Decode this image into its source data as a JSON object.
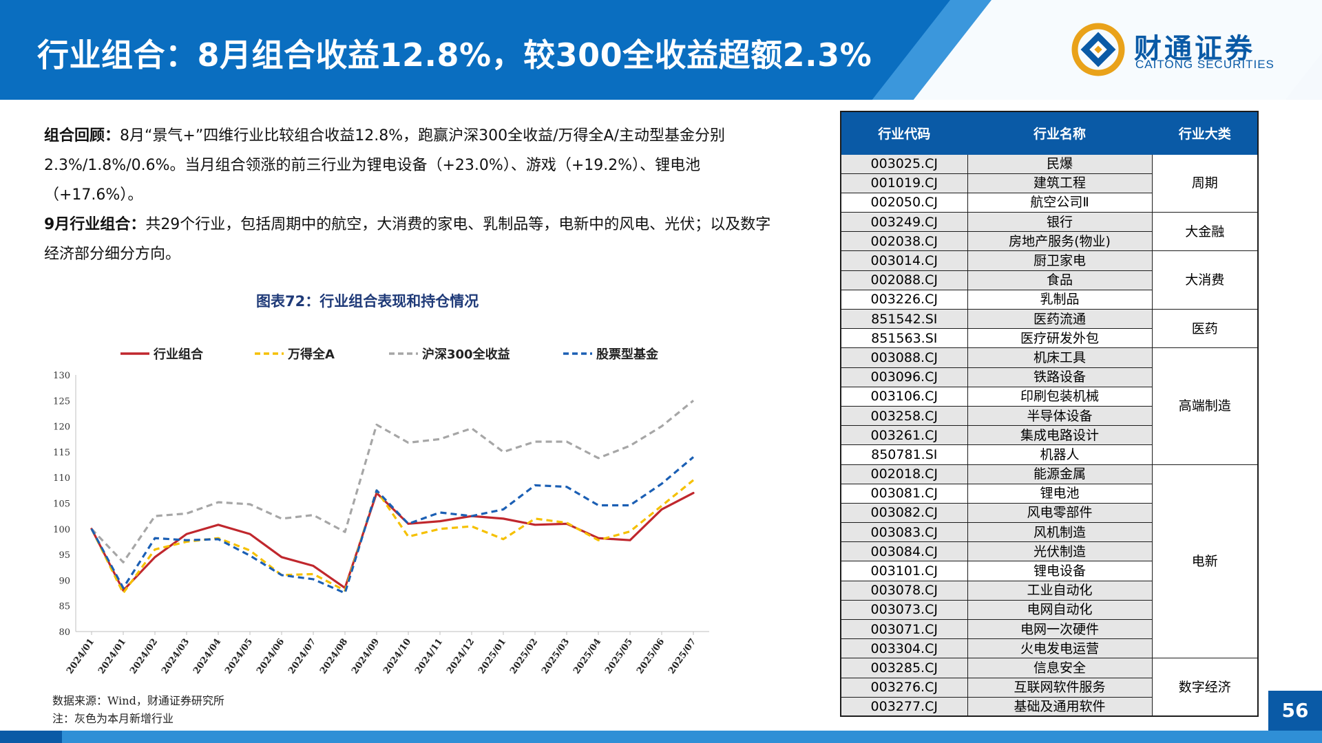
{
  "header": {
    "title": "行业组合：8月组合收益12.8%，较300全收益超额2.3%",
    "logo_cn": "财通证券",
    "logo_en": "CAITONG SECURITIES"
  },
  "intro": {
    "p1_lead": "组合回顾：",
    "p1_text": "8月“景气+”四维行业比较组合收益12.8%，跑赢沪深300全收益/万得全A/主动型基金分别2.3%/1.8%/0.6%。当月组合领涨的前三行业为锂电设备（+23.0%）、游戏（+19.2%）、锂电池（+17.6%）。",
    "p2_lead": "9月行业组合：",
    "p2_text": "共29个行业，包括周期中的航空，大消费的家电、乳制品等，电新中的风电、光伏；以及数字经济部分细分方向。"
  },
  "chart_title": "图表72：行业组合表现和持仓情况",
  "chart_data": {
    "type": "line",
    "categories": [
      "2024/01",
      "2024/01",
      "2024/02",
      "2024/03",
      "2024/04",
      "2024/05",
      "2024/06",
      "2024/07",
      "2024/08",
      "2024/09",
      "2024/10",
      "2024/11",
      "2024/12",
      "2025/01",
      "2025/02",
      "2025/03",
      "2025/04",
      "2025/05",
      "2025/06",
      "2025/07"
    ],
    "ylim": [
      80,
      130
    ],
    "yticks": [
      80,
      85,
      90,
      95,
      100,
      105,
      110,
      115,
      120,
      125,
      130
    ],
    "series": [
      {
        "name": "行业组合",
        "color": "#c0272d",
        "dash": "solid",
        "values": [
          100,
          88,
          94.5,
          99,
          100.8,
          99,
          94.5,
          92.8,
          88.5,
          107,
          101,
          101.5,
          102.5,
          102,
          100.8,
          101,
          98.2,
          97.8,
          103.8,
          107
        ]
      },
      {
        "name": "万得全A",
        "color": "#f5c000",
        "dash": "dash",
        "values": [
          100,
          87.5,
          96,
          97.5,
          98.2,
          95.8,
          91,
          91.2,
          88,
          107.5,
          98.5,
          100,
          100.5,
          98,
          102,
          101.2,
          97.8,
          99.5,
          104.5,
          109.5
        ]
      },
      {
        "name": "沪深300全收益",
        "color": "#a6a6a6",
        "dash": "dash",
        "values": [
          100,
          93.5,
          102.5,
          103,
          105.2,
          104.8,
          102,
          102.7,
          99.4,
          120.3,
          116.8,
          117.5,
          119.6,
          115,
          117,
          117,
          113.8,
          116.2,
          120,
          125
        ]
      },
      {
        "name": "股票型基金",
        "color": "#1b5fb4",
        "dash": "dash",
        "values": [
          100,
          88.5,
          98.2,
          97.8,
          98,
          94.8,
          91,
          90.2,
          87.5,
          107.5,
          101,
          103.2,
          102.5,
          103.8,
          108.5,
          108.2,
          104.6,
          104.6,
          108.8,
          114
        ]
      }
    ]
  },
  "source": {
    "line1": "数据来源：Wind，财通证券研究所",
    "line2": "注：灰色为本月新增行业"
  },
  "table": {
    "headers": [
      "行业代码",
      "行业名称",
      "行业大类"
    ],
    "rows": [
      {
        "code": "003025.CJ",
        "name": "民爆",
        "shade": true
      },
      {
        "code": "001019.CJ",
        "name": "建筑工程",
        "shade": true
      },
      {
        "code": "002050.CJ",
        "name": "航空公司Ⅱ",
        "shade": false
      },
      {
        "code": "003249.CJ",
        "name": "银行",
        "shade": true
      },
      {
        "code": "002038.CJ",
        "name": "房地产服务(物业)",
        "shade": true
      },
      {
        "code": "003014.CJ",
        "name": "厨卫家电",
        "shade": true
      },
      {
        "code": "002088.CJ",
        "name": "食品",
        "shade": true
      },
      {
        "code": "003226.CJ",
        "name": "乳制品",
        "shade": false
      },
      {
        "code": "851542.SI",
        "name": "医药流通",
        "shade": true
      },
      {
        "code": "851563.SI",
        "name": "医疗研发外包",
        "shade": false
      },
      {
        "code": "003088.CJ",
        "name": "机床工具",
        "shade": true
      },
      {
        "code": "003096.CJ",
        "name": "铁路设备",
        "shade": true
      },
      {
        "code": "003106.CJ",
        "name": "印刷包装机械",
        "shade": false
      },
      {
        "code": "003258.CJ",
        "name": "半导体设备",
        "shade": true
      },
      {
        "code": "003261.CJ",
        "name": "集成电路设计",
        "shade": true
      },
      {
        "code": "850781.SI",
        "name": "机器人",
        "shade": false
      },
      {
        "code": "002018.CJ",
        "name": "能源金属",
        "shade": true
      },
      {
        "code": "003081.CJ",
        "name": "锂电池",
        "shade": false
      },
      {
        "code": "003082.CJ",
        "name": "风电零部件",
        "shade": true
      },
      {
        "code": "003083.CJ",
        "name": "风机制造",
        "shade": true
      },
      {
        "code": "003084.CJ",
        "name": "光伏制造",
        "shade": true
      },
      {
        "code": "003101.CJ",
        "name": "锂电设备",
        "shade": false
      },
      {
        "code": "003078.CJ",
        "name": "工业自动化",
        "shade": true
      },
      {
        "code": "003073.CJ",
        "name": "电网自动化",
        "shade": true
      },
      {
        "code": "003071.CJ",
        "name": "电网一次硬件",
        "shade": true
      },
      {
        "code": "003304.CJ",
        "name": "火电发电运营",
        "shade": true
      },
      {
        "code": "003285.CJ",
        "name": "信息安全",
        "shade": true
      },
      {
        "code": "003276.CJ",
        "name": "互联网软件服务",
        "shade": true
      },
      {
        "code": "003277.CJ",
        "name": "基础及通用软件",
        "shade": true
      }
    ],
    "categories": [
      {
        "label": "周期",
        "span": 3
      },
      {
        "label": "大金融",
        "span": 2
      },
      {
        "label": "大消费",
        "span": 3
      },
      {
        "label": "医药",
        "span": 2
      },
      {
        "label": "高端制造",
        "span": 6
      },
      {
        "label": "电新",
        "span": 10
      },
      {
        "label": "数字经济",
        "span": 3
      }
    ]
  },
  "page_number": "56",
  "colors": {
    "brand_blue": "#0a5aa6",
    "header_blue": "#0a6ec0",
    "chart_title": "#1f3a78"
  }
}
